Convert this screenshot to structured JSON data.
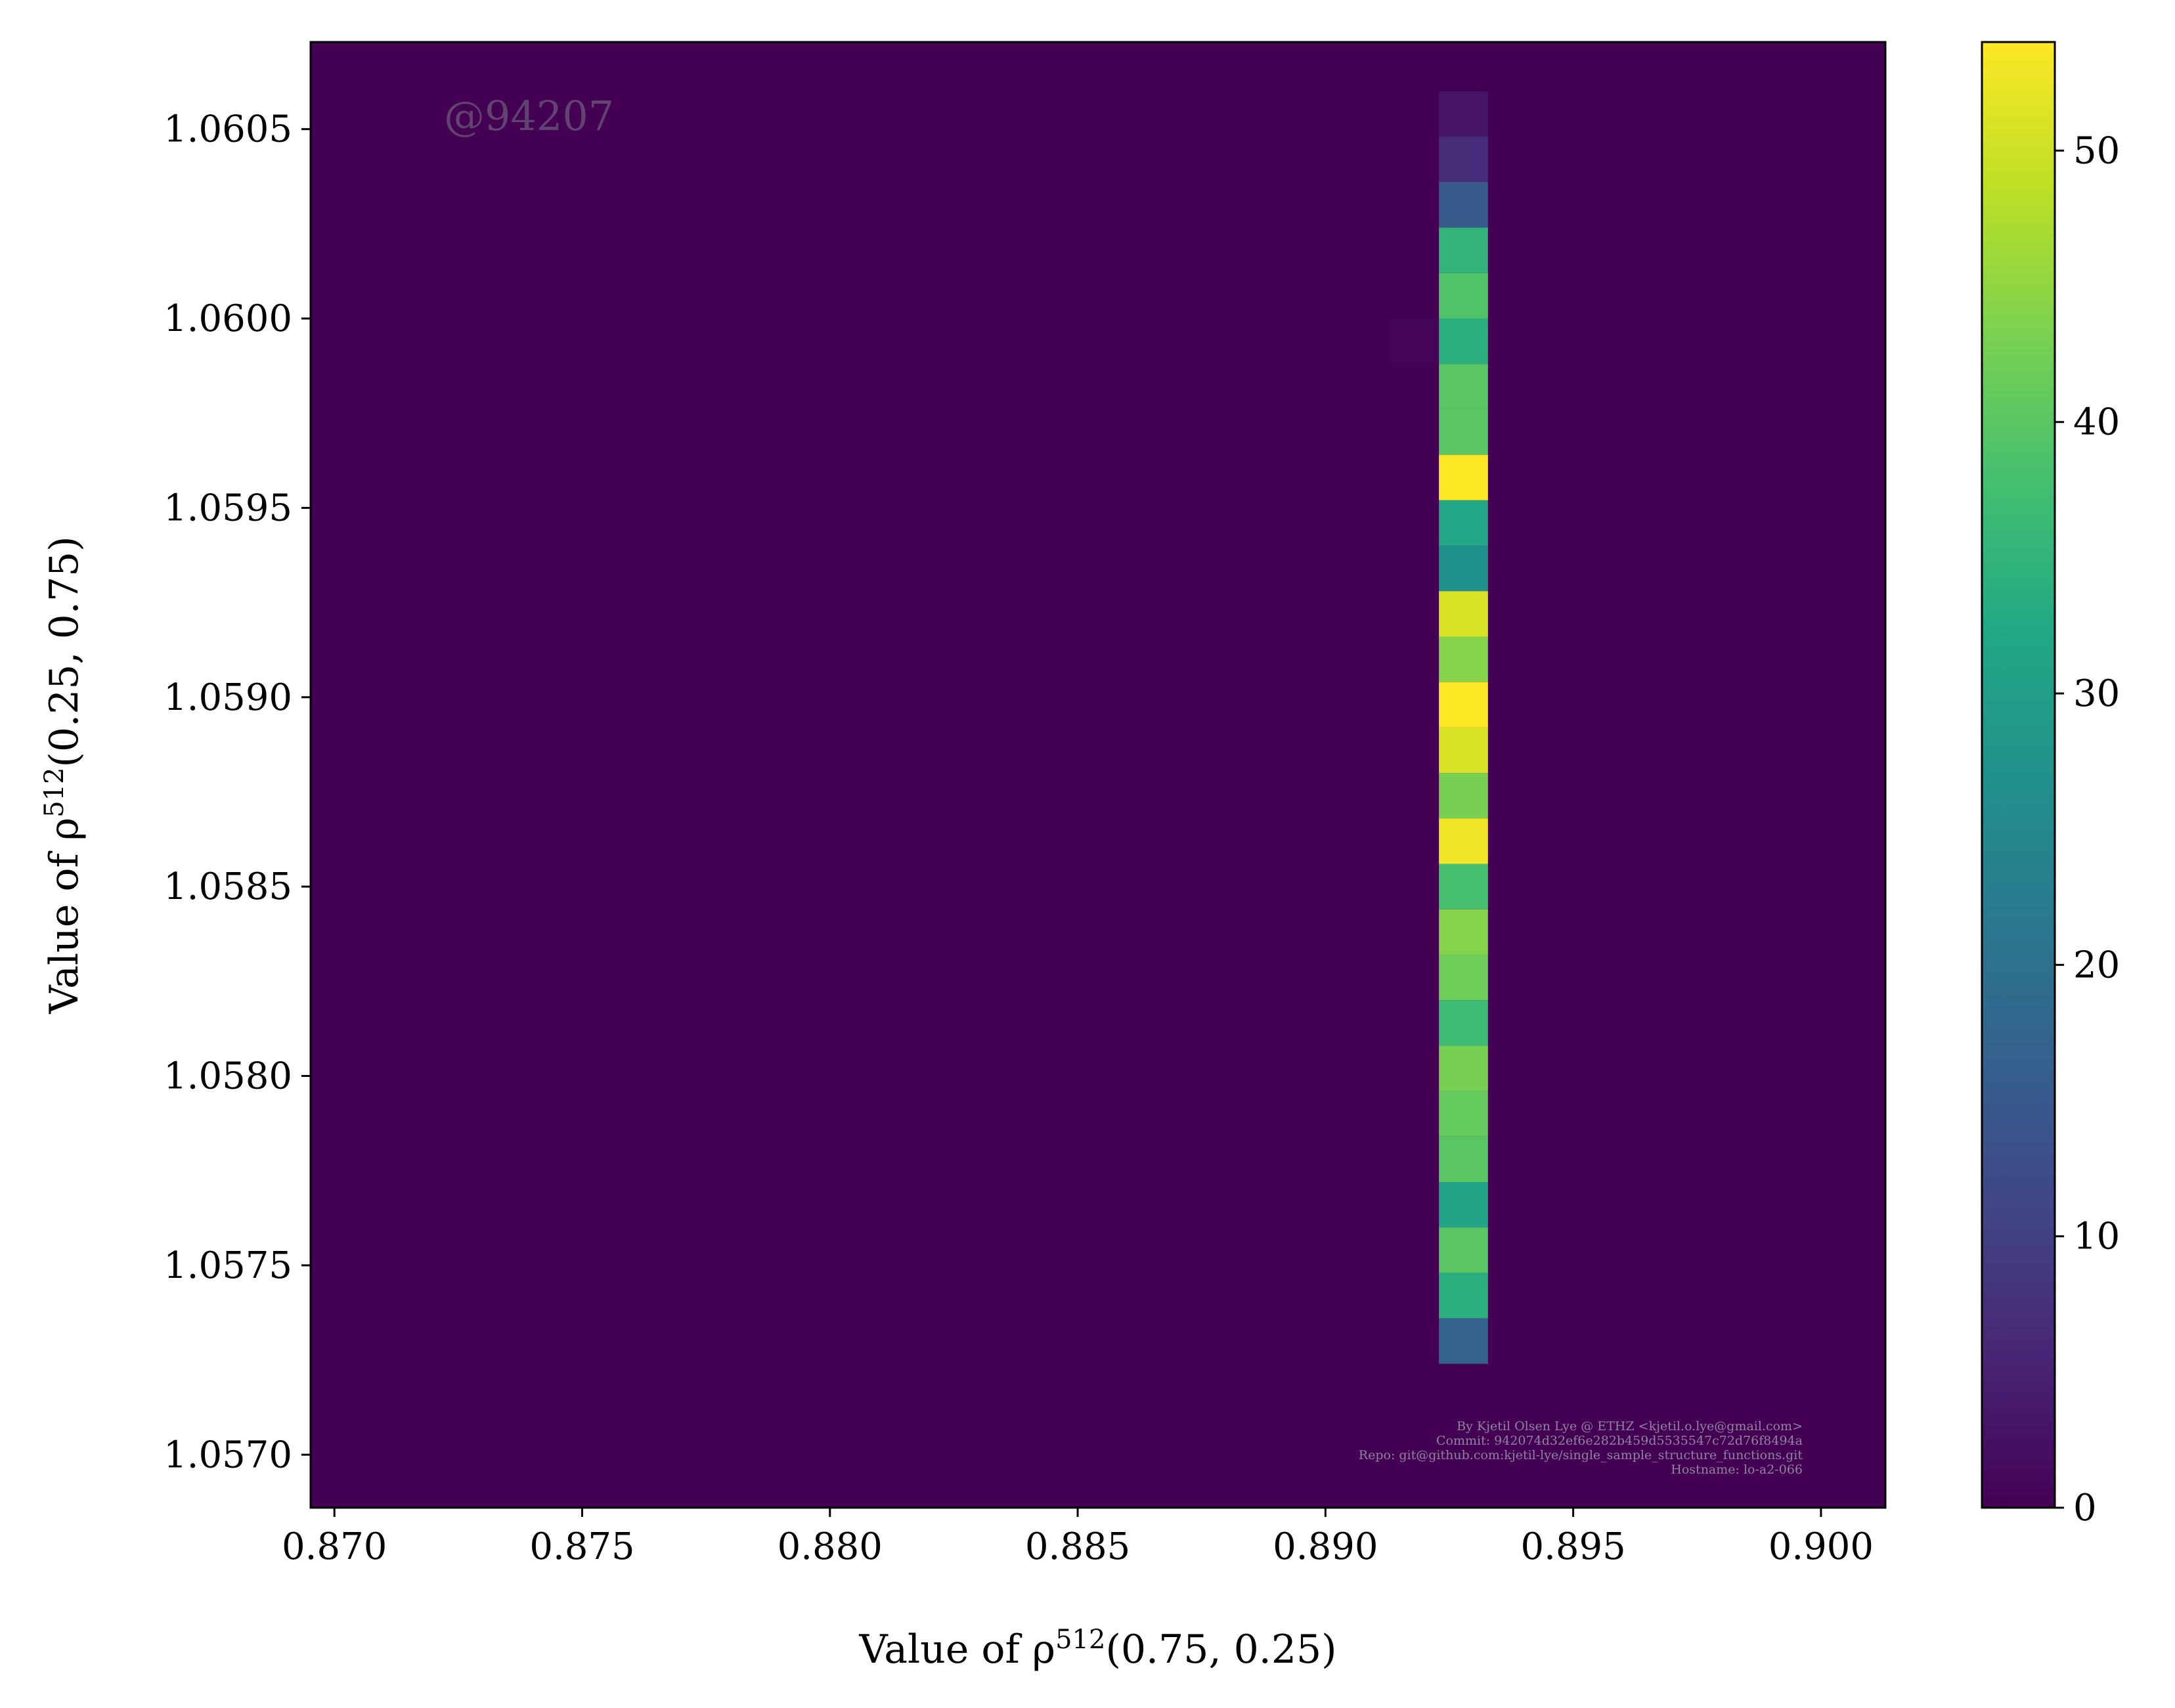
{
  "chart_data": {
    "type": "heatmap",
    "title": "",
    "xlabel": "Value of ρ^512(0.75, 0.25)",
    "xlabel_parts": {
      "prefix": "Value of ρ",
      "sup": "512",
      "suffix": "(0.75, 0.25)"
    },
    "ylabel": "Value of ρ^512(0.25, 0.75)",
    "ylabel_parts": {
      "prefix": "Value of ρ",
      "sup": "512",
      "suffix": "(0.25, 0.75)"
    },
    "xlim": [
      0.86952,
      0.9013
    ],
    "ylim": [
      1.05686,
      1.06073
    ],
    "x_ticks": [
      {
        "value": 0.87,
        "label": "0.870"
      },
      {
        "value": 0.875,
        "label": "0.875"
      },
      {
        "value": 0.88,
        "label": "0.880"
      },
      {
        "value": 0.885,
        "label": "0.885"
      },
      {
        "value": 0.89,
        "label": "0.890"
      },
      {
        "value": 0.895,
        "label": "0.895"
      },
      {
        "value": 0.9,
        "label": "0.900"
      }
    ],
    "y_ticks": [
      {
        "value": 1.057,
        "label": "1.0570"
      },
      {
        "value": 1.0575,
        "label": "1.0575"
      },
      {
        "value": 1.058,
        "label": "1.0580"
      },
      {
        "value": 1.0585,
        "label": "1.0585"
      },
      {
        "value": 1.059,
        "label": "1.0590"
      },
      {
        "value": 1.0595,
        "label": "1.0595"
      },
      {
        "value": 1.06,
        "label": "1.0600"
      },
      {
        "value": 1.0605,
        "label": "1.0605"
      }
    ],
    "colorbar": {
      "colormap": "viridis",
      "vmin": 0,
      "vmax": 54,
      "ticks": [
        {
          "value": 0,
          "label": "0"
        },
        {
          "value": 10,
          "label": "10"
        },
        {
          "value": 20,
          "label": "20"
        },
        {
          "value": 30,
          "label": "30"
        },
        {
          "value": 40,
          "label": "40"
        },
        {
          "value": 50,
          "label": "50"
        }
      ]
    },
    "cells": [
      {
        "x0": 0.89229,
        "x1": 0.89328,
        "y0": 1.06048,
        "y1": 1.0606,
        "value": 3
      },
      {
        "x0": 0.89229,
        "x1": 0.89328,
        "y0": 1.06036,
        "y1": 1.06048,
        "value": 7
      },
      {
        "x0": 0.89229,
        "x1": 0.89328,
        "y0": 1.06024,
        "y1": 1.06036,
        "value": 15
      },
      {
        "x0": 0.89229,
        "x1": 0.89328,
        "y0": 1.06012,
        "y1": 1.06024,
        "value": 35
      },
      {
        "x0": 0.89229,
        "x1": 0.89328,
        "y0": 1.06,
        "y1": 1.06012,
        "value": 39
      },
      {
        "x0": 0.8913,
        "x1": 0.89229,
        "y0": 1.05988,
        "y1": 1.06,
        "value": 0.5
      },
      {
        "x0": 0.89229,
        "x1": 0.89328,
        "y0": 1.05988,
        "y1": 1.06,
        "value": 34
      },
      {
        "x0": 0.89229,
        "x1": 0.89328,
        "y0": 1.05976,
        "y1": 1.05988,
        "value": 40
      },
      {
        "x0": 0.89229,
        "x1": 0.89328,
        "y0": 1.05964,
        "y1": 1.05976,
        "value": 40
      },
      {
        "x0": 0.89229,
        "x1": 0.89328,
        "y0": 1.05952,
        "y1": 1.05964,
        "value": 54
      },
      {
        "x0": 0.89229,
        "x1": 0.89328,
        "y0": 1.0594,
        "y1": 1.05952,
        "value": 32
      },
      {
        "x0": 0.89229,
        "x1": 0.89328,
        "y0": 1.05928,
        "y1": 1.0594,
        "value": 27
      },
      {
        "x0": 0.89229,
        "x1": 0.89328,
        "y0": 1.05916,
        "y1": 1.05928,
        "value": 51
      },
      {
        "x0": 0.89229,
        "x1": 0.89328,
        "y0": 1.05904,
        "y1": 1.05916,
        "value": 44
      },
      {
        "x0": 0.89229,
        "x1": 0.89328,
        "y0": 1.05892,
        "y1": 1.05904,
        "value": 54
      },
      {
        "x0": 0.89229,
        "x1": 0.89328,
        "y0": 1.0588,
        "y1": 1.05892,
        "value": 51
      },
      {
        "x0": 0.89229,
        "x1": 0.89328,
        "y0": 1.05868,
        "y1": 1.0588,
        "value": 43
      },
      {
        "x0": 0.89229,
        "x1": 0.89328,
        "y0": 1.05856,
        "y1": 1.05868,
        "value": 53
      },
      {
        "x0": 0.89229,
        "x1": 0.89328,
        "y0": 1.05844,
        "y1": 1.05856,
        "value": 38
      },
      {
        "x0": 0.89229,
        "x1": 0.89328,
        "y0": 1.05832,
        "y1": 1.05844,
        "value": 44
      },
      {
        "x0": 0.89229,
        "x1": 0.89328,
        "y0": 1.0582,
        "y1": 1.05832,
        "value": 42
      },
      {
        "x0": 0.89229,
        "x1": 0.89328,
        "y0": 1.05808,
        "y1": 1.0582,
        "value": 37
      },
      {
        "x0": 0.89229,
        "x1": 0.89328,
        "y0": 1.05796,
        "y1": 1.05808,
        "value": 43
      },
      {
        "x0": 0.89229,
        "x1": 0.89328,
        "y0": 1.05784,
        "y1": 1.05796,
        "value": 41
      },
      {
        "x0": 0.89229,
        "x1": 0.89328,
        "y0": 1.05772,
        "y1": 1.05784,
        "value": 40
      },
      {
        "x0": 0.89229,
        "x1": 0.89328,
        "y0": 1.0576,
        "y1": 1.05772,
        "value": 31
      },
      {
        "x0": 0.89229,
        "x1": 0.89328,
        "y0": 1.05748,
        "y1": 1.0576,
        "value": 40
      },
      {
        "x0": 0.89229,
        "x1": 0.89328,
        "y0": 1.05736,
        "y1": 1.05748,
        "value": 34
      },
      {
        "x0": 0.89229,
        "x1": 0.89328,
        "y0": 1.05724,
        "y1": 1.05736,
        "value": 17
      }
    ]
  },
  "watermark": "@94207",
  "credits": [
    "By Kjetil Olsen Lye @ ETHZ <kjetil.o.lye@gmail.com>",
    "Commit: 942074d32ef6e282b459d5535547c72d76f8494a",
    "Repo: git@github.com:kjetil-lye/single_sample_structure_functions.git",
    "Hostname: lo-a2-066"
  ],
  "colors": {
    "background": "#440154",
    "axes": "#000000"
  }
}
